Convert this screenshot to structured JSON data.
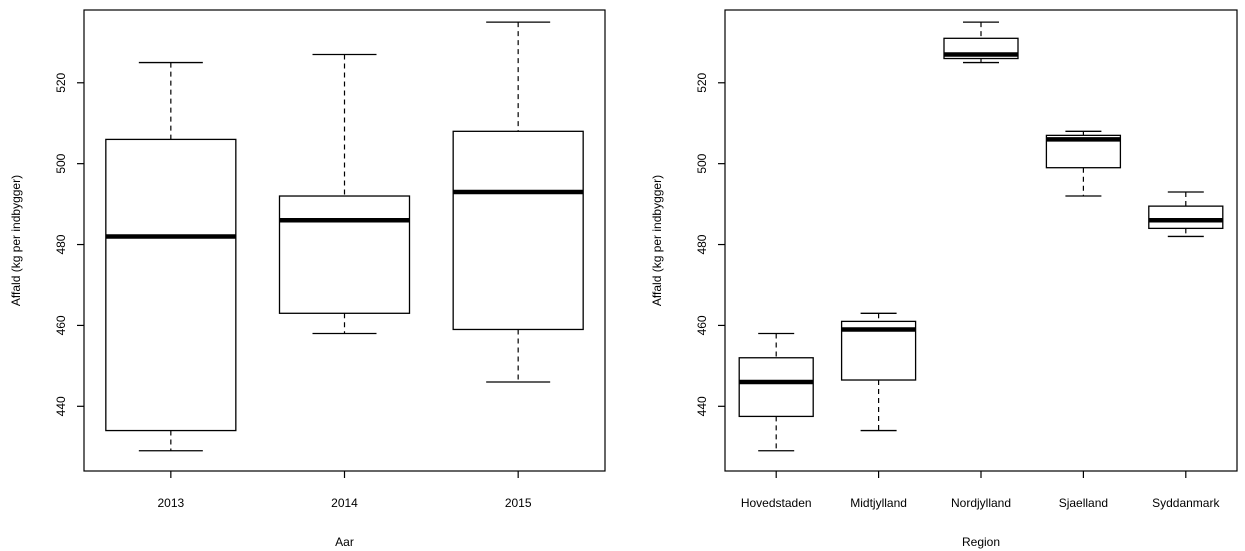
{
  "chart_data": [
    {
      "type": "boxplot",
      "xlabel": "Aar",
      "ylabel": "Affald (kg per indbygger)",
      "categories": [
        "2013",
        "2014",
        "2015"
      ],
      "yticks": [
        440,
        460,
        480,
        500,
        520
      ],
      "ylim": [
        424,
        538
      ],
      "grid": false,
      "boxes": [
        {
          "category": "2013",
          "whisker_low": 429,
          "q1": 434,
          "median": 482,
          "q3": 506,
          "whisker_high": 525
        },
        {
          "category": "2014",
          "whisker_low": 458,
          "q1": 463,
          "median": 486,
          "q3": 492,
          "whisker_high": 527
        },
        {
          "category": "2015",
          "whisker_low": 446,
          "q1": 459,
          "median": 493,
          "q3": 508,
          "whisker_high": 535
        }
      ]
    },
    {
      "type": "boxplot",
      "xlabel": "Region",
      "ylabel": "Affald (kg per indbygger)",
      "categories": [
        "Hovedstaden",
        "Midtjylland",
        "Nordjylland",
        "Sjaelland",
        "Syddanmark"
      ],
      "yticks": [
        440,
        460,
        480,
        500,
        520
      ],
      "ylim": [
        424,
        538
      ],
      "grid": false,
      "boxes": [
        {
          "category": "Hovedstaden",
          "whisker_low": 429,
          "q1": 437.5,
          "median": 446,
          "q3": 452,
          "whisker_high": 458
        },
        {
          "category": "Midtjylland",
          "whisker_low": 434,
          "q1": 446.5,
          "median": 459,
          "q3": 461,
          "whisker_high": 463
        },
        {
          "category": "Nordjylland",
          "whisker_low": 525,
          "q1": 526,
          "median": 527,
          "q3": 531,
          "whisker_high": 535
        },
        {
          "category": "Sjaelland",
          "whisker_low": 492,
          "q1": 499,
          "median": 506,
          "q3": 507,
          "whisker_high": 508
        },
        {
          "category": "Syddanmark",
          "whisker_low": 482,
          "q1": 484,
          "median": 486,
          "q3": 489.5,
          "whisker_high": 493
        }
      ]
    }
  ]
}
